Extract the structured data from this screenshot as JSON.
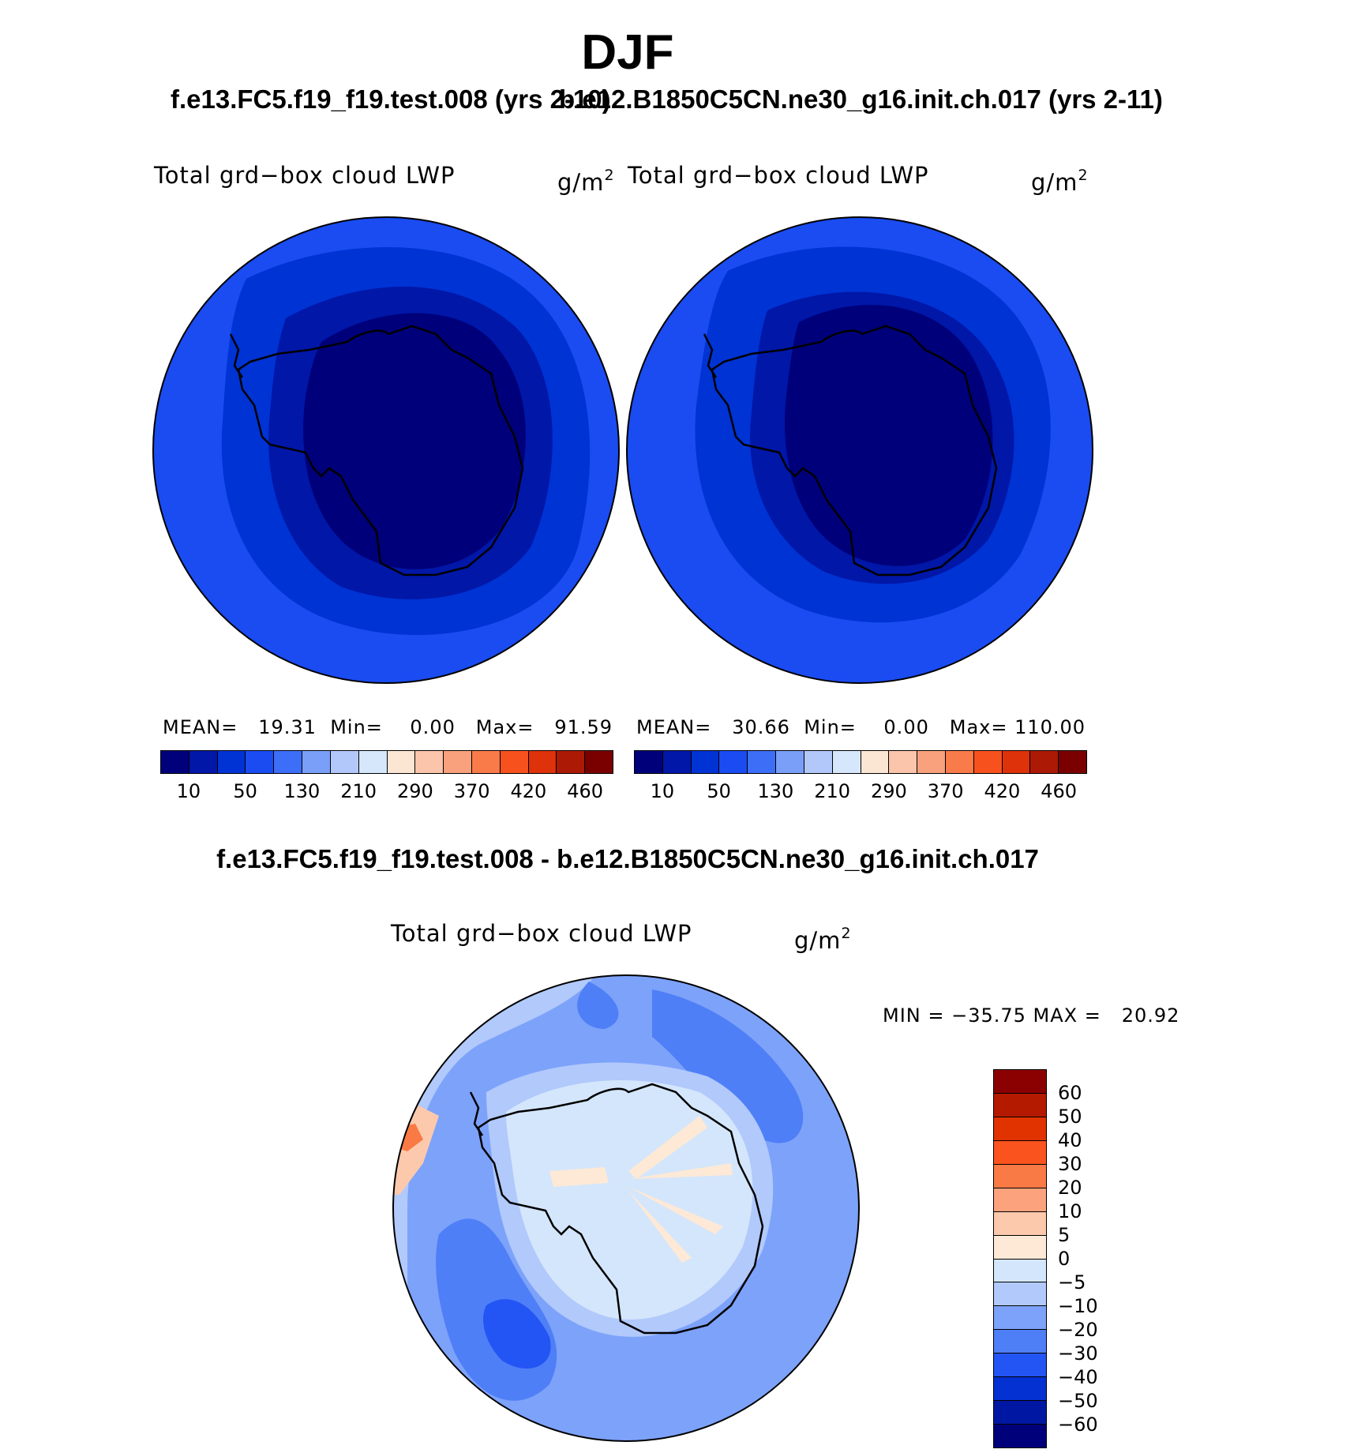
{
  "season": "DJF",
  "panels": {
    "left": {
      "case_title": "f.e13.FC5.f19_f19.test.008 (yrs 2-10)",
      "variable": "Total grd−box cloud LWP",
      "units_base": "g/m",
      "units_exp": "2",
      "stats": "MEAN=   19.31  Min=    0.00   Max=   91.59"
    },
    "right": {
      "case_title": "b.e12.B1850C5CN.ne30_g16.init.ch.017 (yrs 2-11)",
      "variable": "Total grd−box cloud LWP",
      "units_base": "g/m",
      "units_exp": "2",
      "stats": "MEAN=   30.66  Min=    0.00   Max= 110.00"
    },
    "diff": {
      "title": "f.e13.FC5.f19_f19.test.008 - b.e12.B1850C5CN.ne30_g16.init.ch.017",
      "variable": "Total grd−box cloud LWP",
      "units_base": "g/m",
      "units_exp": "2",
      "stats": "MIN = −35.75 MAX =   20.92"
    }
  },
  "colorbars": {
    "abs": {
      "colors": [
        "#00007a",
        "#0017a8",
        "#0033d4",
        "#1a4cf2",
        "#3d6ef7",
        "#7a9ff9",
        "#b2c8fb",
        "#d6e7fb",
        "#fbe6d4",
        "#fbc5ac",
        "#f9a07c",
        "#f97b4a",
        "#f7521e",
        "#dd320a",
        "#ac1a06",
        "#7a0000"
      ],
      "labels": [
        "10",
        "50",
        "130",
        "210",
        "290",
        "370",
        "420",
        "460"
      ]
    },
    "diff": {
      "colors": [
        "#8b0000",
        "#b31a00",
        "#e03300",
        "#fa531e",
        "#fa7a46",
        "#fca37e",
        "#fcc9ad",
        "#fde9d6",
        "#d4e6fb",
        "#b1c9fb",
        "#7da2fa",
        "#4f7ff7",
        "#2354f4",
        "#0431d2",
        "#0017a3",
        "#00007a"
      ],
      "labels": [
        "60",
        "50",
        "40",
        "30",
        "20",
        "10",
        "5",
        "0",
        "−5",
        "−10",
        "−20",
        "−30",
        "−40",
        "−50",
        "−60"
      ]
    }
  }
}
